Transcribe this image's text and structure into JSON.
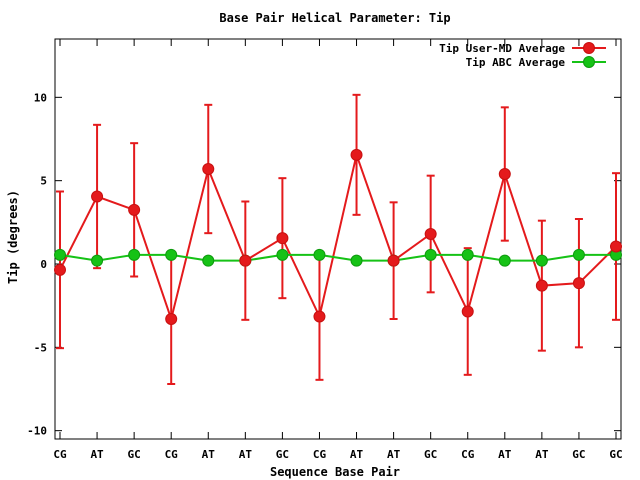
{
  "chart_data": {
    "type": "line",
    "title": "Base Pair Helical Parameter: Tip",
    "xlabel": "Sequence Base Pair",
    "ylabel": "Tip (degrees)",
    "ylim": [
      -10.5,
      13.5
    ],
    "yticks": [
      10,
      5,
      0,
      -5,
      -10
    ],
    "ytick_labels": [
      "10",
      "5",
      "0",
      "-5",
      "-10"
    ],
    "categories": [
      "CG",
      "AT",
      "GC",
      "CG",
      "AT",
      "AT",
      "GC",
      "CG",
      "AT",
      "AT",
      "GC",
      "CG",
      "AT",
      "AT",
      "GC",
      "GC"
    ],
    "legend_position": "top-right",
    "grid": false,
    "series": [
      {
        "name": "Tip User-MD Average",
        "color": "#e41a1c",
        "values": [
          -0.35,
          4.05,
          3.25,
          -3.3,
          5.7,
          0.2,
          1.55,
          -3.15,
          6.55,
          0.2,
          1.8,
          -2.85,
          5.4,
          -1.3,
          -1.15,
          1.05
        ],
        "errors": [
          4.7,
          4.3,
          4.0,
          3.9,
          3.85,
          3.55,
          3.6,
          3.8,
          3.6,
          3.5,
          3.5,
          3.8,
          4.0,
          3.9,
          3.85,
          4.4
        ]
      },
      {
        "name": "Tip ABC Average",
        "color": "#16c216",
        "values": [
          0.55,
          0.2,
          0.55,
          0.55,
          0.2,
          0.2,
          0.55,
          0.55,
          0.2,
          0.2,
          0.55,
          0.55,
          0.2,
          0.2,
          0.55,
          0.55
        ]
      }
    ]
  }
}
